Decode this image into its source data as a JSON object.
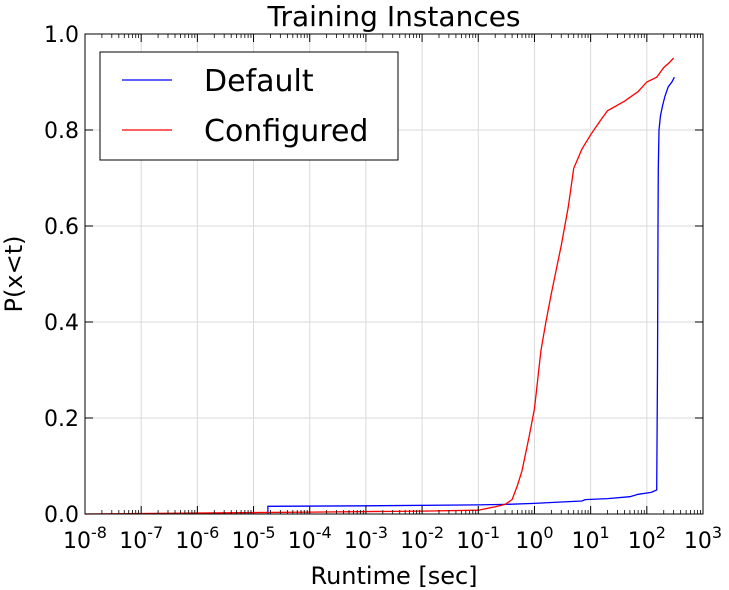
{
  "chart_data": {
    "type": "line",
    "title": "Training Instances",
    "xlabel": "Runtime [sec]",
    "ylabel": "P(x<t)",
    "xscale": "log",
    "xlim": [
      1e-08,
      1000
    ],
    "ylim": [
      0,
      1.0
    ],
    "grid": true,
    "legend_placement": "top-left",
    "x_ticks": [
      {
        "exp": -8,
        "label": "10",
        "sup": "-8"
      },
      {
        "exp": -7,
        "label": "10",
        "sup": "-7"
      },
      {
        "exp": -6,
        "label": "10",
        "sup": "-6"
      },
      {
        "exp": -5,
        "label": "10",
        "sup": "-5"
      },
      {
        "exp": -4,
        "label": "10",
        "sup": "-4"
      },
      {
        "exp": -3,
        "label": "10",
        "sup": "-3"
      },
      {
        "exp": -2,
        "label": "10",
        "sup": "-2"
      },
      {
        "exp": -1,
        "label": "10",
        "sup": "-1"
      },
      {
        "exp": 0,
        "label": "10",
        "sup": "0"
      },
      {
        "exp": 1,
        "label": "10",
        "sup": "1"
      },
      {
        "exp": 2,
        "label": "10",
        "sup": "2"
      },
      {
        "exp": 3,
        "label": "10",
        "sup": "3"
      }
    ],
    "y_ticks": [
      {
        "value": 0.0,
        "label": "0.0"
      },
      {
        "value": 0.2,
        "label": "0.2"
      },
      {
        "value": 0.4,
        "label": "0.4"
      },
      {
        "value": 0.6,
        "label": "0.6"
      },
      {
        "value": 0.8,
        "label": "0.8"
      },
      {
        "value": 1.0,
        "label": "1.0"
      }
    ],
    "series": [
      {
        "name": "Default",
        "color": "#0000ff",
        "points": [
          [
            1.8e-05,
            0.0
          ],
          [
            1.8e-05,
            0.016
          ],
          [
            0.001,
            0.017
          ],
          [
            0.1,
            0.019
          ],
          [
            0.3,
            0.02
          ],
          [
            1,
            0.022
          ],
          [
            3,
            0.025
          ],
          [
            7,
            0.027
          ],
          [
            8,
            0.03
          ],
          [
            20,
            0.032
          ],
          [
            50,
            0.036
          ],
          [
            70,
            0.041
          ],
          [
            120,
            0.045
          ],
          [
            150,
            0.05
          ],
          [
            155,
            0.3
          ],
          [
            158,
            0.6
          ],
          [
            160,
            0.72
          ],
          [
            165,
            0.8
          ],
          [
            175,
            0.83
          ],
          [
            190,
            0.85
          ],
          [
            210,
            0.87
          ],
          [
            240,
            0.89
          ],
          [
            280,
            0.9
          ],
          [
            310,
            0.91
          ]
        ]
      },
      {
        "name": "Configured",
        "color": "#ff0000",
        "points": [
          [
            1e-08,
            0.0
          ],
          [
            1e-06,
            0.002
          ],
          [
            0.0001,
            0.004
          ],
          [
            0.01,
            0.006
          ],
          [
            0.1,
            0.008
          ],
          [
            0.2,
            0.015
          ],
          [
            0.3,
            0.02
          ],
          [
            0.4,
            0.03
          ],
          [
            0.5,
            0.06
          ],
          [
            0.6,
            0.09
          ],
          [
            0.8,
            0.16
          ],
          [
            1,
            0.22
          ],
          [
            1.3,
            0.34
          ],
          [
            1.6,
            0.4
          ],
          [
            2,
            0.46
          ],
          [
            3,
            0.56
          ],
          [
            4,
            0.64
          ],
          [
            5,
            0.72
          ],
          [
            7,
            0.76
          ],
          [
            10,
            0.79
          ],
          [
            15,
            0.82
          ],
          [
            20,
            0.84
          ],
          [
            40,
            0.86
          ],
          [
            70,
            0.88
          ],
          [
            100,
            0.9
          ],
          [
            150,
            0.91
          ],
          [
            200,
            0.93
          ],
          [
            250,
            0.94
          ],
          [
            300,
            0.95
          ]
        ]
      }
    ]
  }
}
